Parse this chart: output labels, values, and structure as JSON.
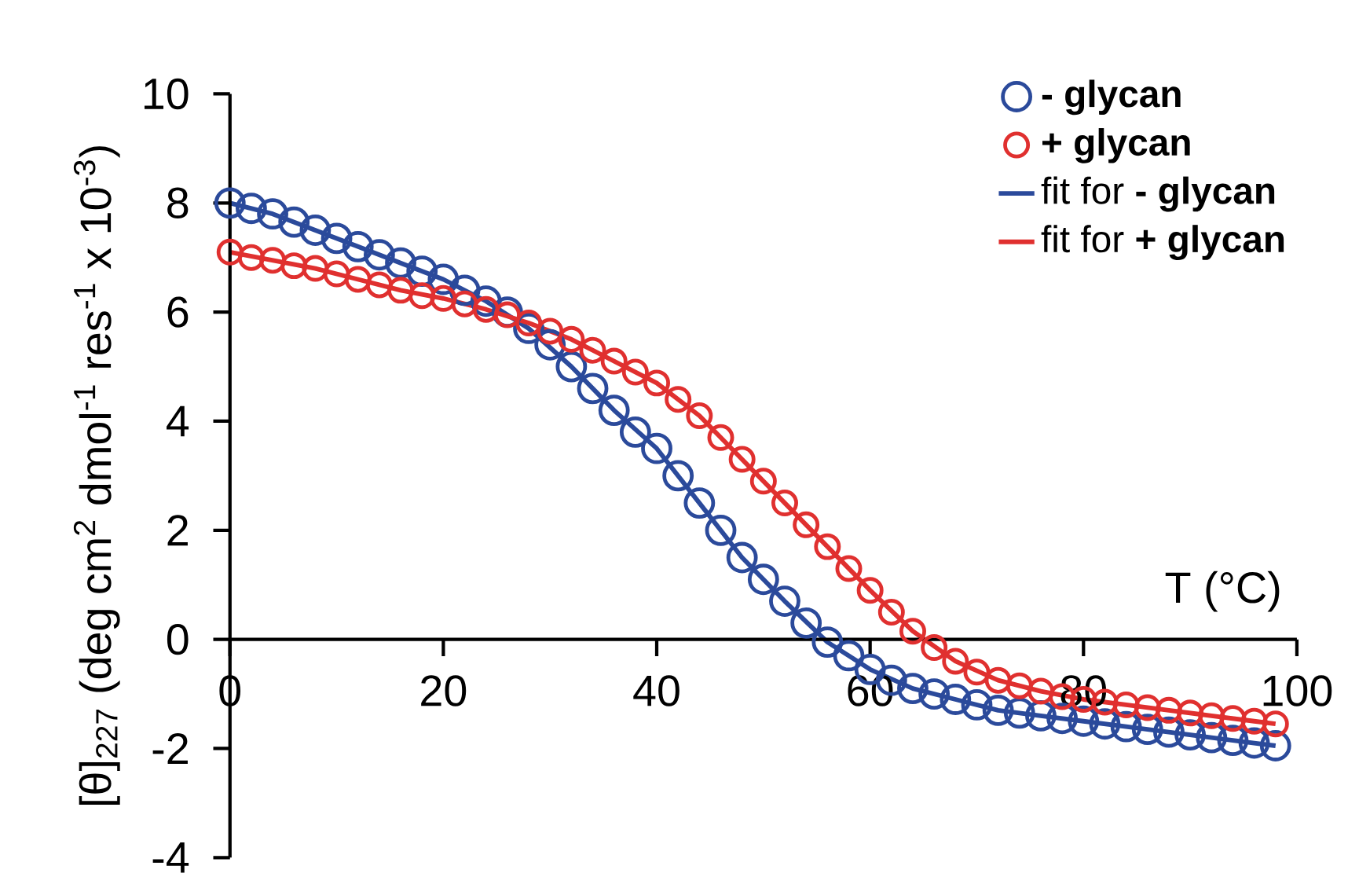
{
  "chart_data": {
    "type": "scatter",
    "xlabel": "T (°C)",
    "ylabel": "[θ]$_{227}$ (deg cm$^{2}$ dmol$^{-1}$ res$^{-1}$ x 10$^{-3}$)",
    "xlim": [
      0,
      100
    ],
    "ylim": [
      -4,
      10
    ],
    "xticks": [
      0,
      20,
      40,
      60,
      80,
      100
    ],
    "yticks": [
      -4,
      -2,
      0,
      2,
      4,
      6,
      8,
      10
    ],
    "marker": "circle",
    "grid": false,
    "legend": "top right",
    "series": [
      {
        "name": "**- glycan**",
        "color": "#2b4a9b",
        "x": [
          0,
          2,
          4,
          6,
          8,
          10,
          12,
          14,
          16,
          18,
          20,
          22,
          24,
          26,
          28,
          30,
          32,
          34,
          36,
          38,
          40,
          42,
          44,
          46,
          48,
          50,
          52,
          54,
          56,
          58,
          60,
          62,
          64,
          66,
          68,
          70,
          72,
          74,
          76,
          78,
          80,
          82,
          84,
          86,
          88,
          90,
          92,
          94,
          96,
          98
        ],
        "values": [
          8.0,
          7.9,
          7.8,
          7.65,
          7.5,
          7.35,
          7.2,
          7.05,
          6.9,
          6.75,
          6.6,
          6.4,
          6.2,
          6.0,
          5.7,
          5.4,
          5.0,
          4.6,
          4.2,
          3.8,
          3.5,
          3.0,
          2.5,
          2.0,
          1.5,
          1.1,
          0.7,
          0.3,
          -0.05,
          -0.3,
          -0.55,
          -0.75,
          -0.9,
          -1.0,
          -1.1,
          -1.2,
          -1.3,
          -1.35,
          -1.4,
          -1.45,
          -1.5,
          -1.55,
          -1.6,
          -1.65,
          -1.7,
          -1.75,
          -1.8,
          -1.85,
          -1.9,
          -1.95
        ]
      },
      {
        "name": "**+ glycan**",
        "color": "#e0302f",
        "x": [
          0,
          2,
          4,
          6,
          8,
          10,
          12,
          14,
          16,
          18,
          20,
          22,
          24,
          26,
          28,
          30,
          32,
          34,
          36,
          38,
          40,
          42,
          44,
          46,
          48,
          50,
          52,
          54,
          56,
          58,
          60,
          62,
          64,
          66,
          68,
          70,
          72,
          74,
          76,
          78,
          80,
          82,
          84,
          86,
          88,
          90,
          92,
          94,
          96,
          98
        ],
        "values": [
          7.1,
          7.0,
          6.95,
          6.85,
          6.8,
          6.7,
          6.6,
          6.5,
          6.4,
          6.3,
          6.25,
          6.15,
          6.05,
          5.95,
          5.8,
          5.65,
          5.5,
          5.3,
          5.1,
          4.9,
          4.7,
          4.4,
          4.1,
          3.7,
          3.3,
          2.9,
          2.5,
          2.1,
          1.7,
          1.3,
          0.9,
          0.5,
          0.15,
          -0.15,
          -0.4,
          -0.6,
          -0.75,
          -0.85,
          -0.95,
          -1.05,
          -1.1,
          -1.15,
          -1.2,
          -1.25,
          -1.3,
          -1.35,
          -1.4,
          -1.45,
          -1.5,
          -1.55
        ]
      },
      {
        "name": "fit for **- glycan**",
        "type": "line",
        "marker": "none",
        "color": "#2b4a9b",
        "x": [
          0,
          4,
          8,
          12,
          16,
          20,
          24,
          28,
          32,
          36,
          40,
          44,
          48,
          52,
          56,
          60,
          64,
          68,
          72,
          76,
          80,
          84,
          88,
          92,
          96,
          98
        ],
        "values": [
          8.0,
          7.8,
          7.5,
          7.2,
          6.9,
          6.6,
          6.2,
          5.7,
          5.0,
          4.2,
          3.5,
          2.5,
          1.5,
          0.7,
          -0.05,
          -0.55,
          -0.9,
          -1.1,
          -1.3,
          -1.4,
          -1.5,
          -1.6,
          -1.7,
          -1.8,
          -1.9,
          -1.95
        ]
      },
      {
        "name": "fit for **+ glycan**",
        "type": "line",
        "marker": "none",
        "color": "#e0302f",
        "x": [
          0,
          4,
          8,
          12,
          16,
          20,
          24,
          28,
          32,
          36,
          40,
          44,
          48,
          52,
          56,
          60,
          64,
          68,
          72,
          76,
          80,
          84,
          88,
          92,
          96,
          98
        ],
        "values": [
          7.1,
          6.95,
          6.8,
          6.6,
          6.4,
          6.25,
          6.05,
          5.8,
          5.5,
          5.1,
          4.7,
          4.1,
          3.3,
          2.5,
          1.7,
          0.9,
          0.15,
          -0.4,
          -0.75,
          -0.95,
          -1.1,
          -1.2,
          -1.3,
          -1.4,
          -1.5,
          -1.55
        ]
      }
    ]
  }
}
